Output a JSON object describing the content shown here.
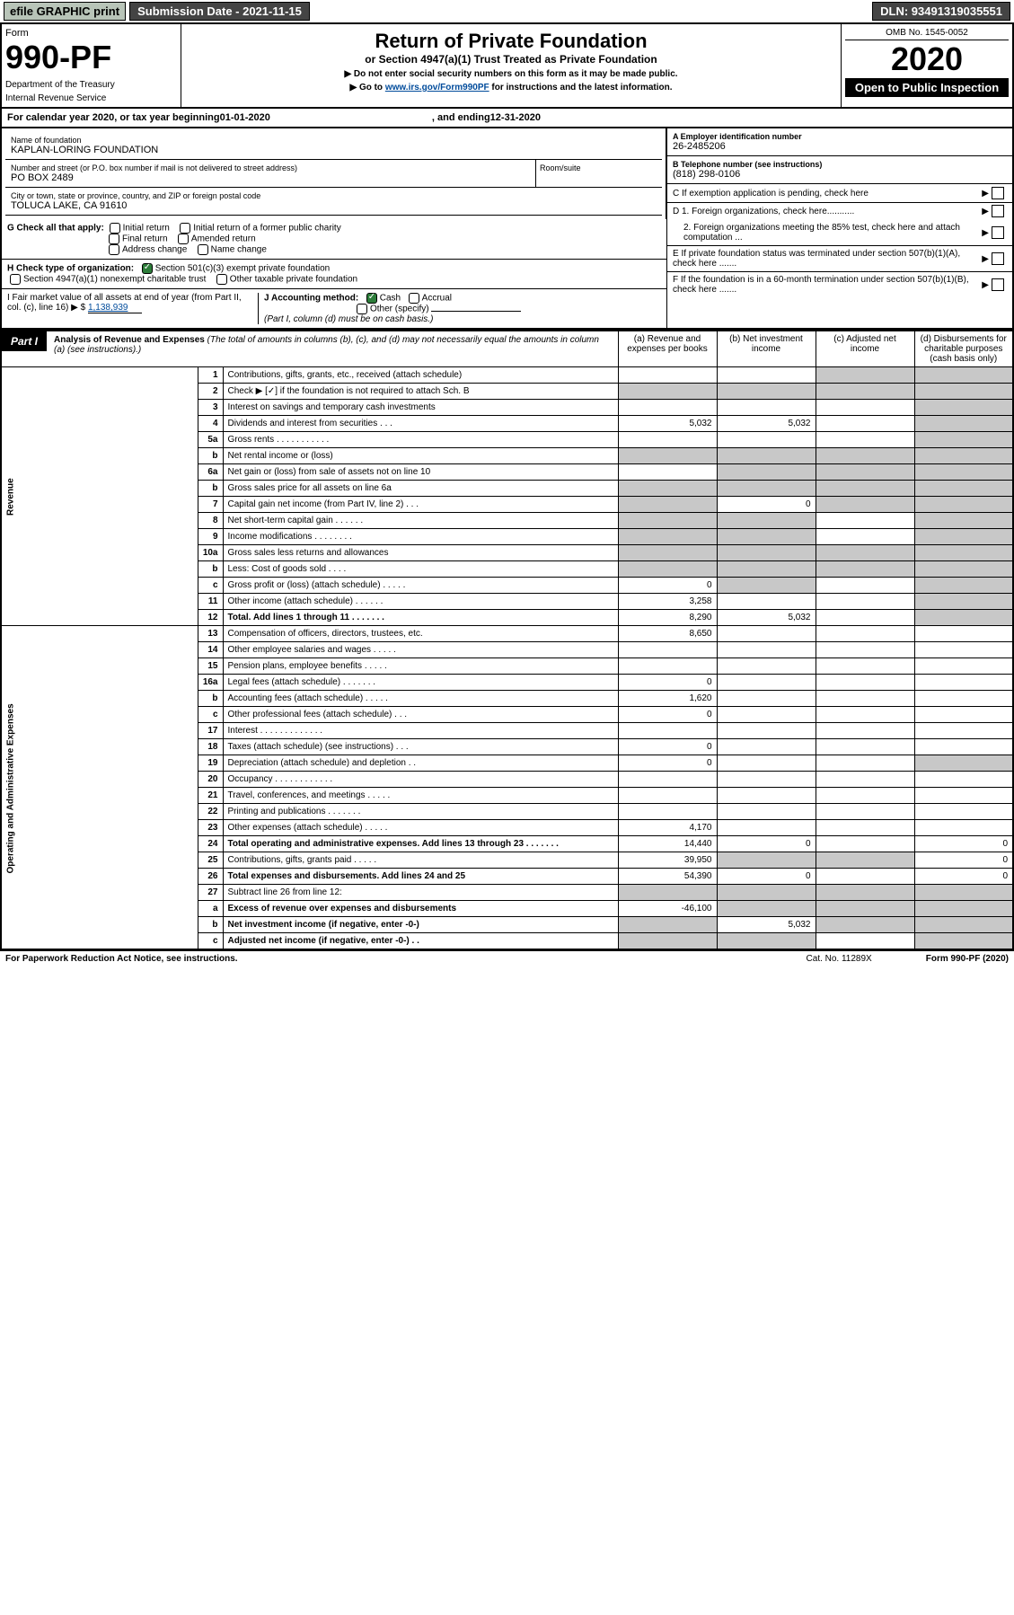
{
  "top": {
    "efile": "efile GRAPHIC print",
    "submission": "Submission Date - 2021-11-15",
    "dln": "DLN: 93491319035551"
  },
  "header": {
    "form_label": "Form",
    "form_no": "990-PF",
    "dept": "Department of the Treasury",
    "irs": "Internal Revenue Service",
    "title": "Return of Private Foundation",
    "subtitle": "or Section 4947(a)(1) Trust Treated as Private Foundation",
    "note1": "▶ Do not enter social security numbers on this form as it may be made public.",
    "note2_pre": "▶ Go to ",
    "note2_link": "www.irs.gov/Form990PF",
    "note2_post": " for instructions and the latest information.",
    "omb": "OMB No. 1545-0052",
    "year": "2020",
    "open": "Open to Public Inspection"
  },
  "calyear": {
    "pre": "For calendar year 2020, or tax year beginning ",
    "begin": "01-01-2020",
    "mid": " , and ending ",
    "end": "12-31-2020"
  },
  "entity": {
    "name_label": "Name of foundation",
    "name": "KAPLAN-LORING FOUNDATION",
    "addr_label": "Number and street (or P.O. box number if mail is not delivered to street address)",
    "addr": "PO BOX 2489",
    "room_label": "Room/suite",
    "city_label": "City or town, state or province, country, and ZIP or foreign postal code",
    "city": "TOLUCA LAKE, CA  91610",
    "ein_label": "A Employer identification number",
    "ein": "26-2485206",
    "phone_label": "B Telephone number (see instructions)",
    "phone": "(818) 298-0106",
    "c_label": "C If exemption application is pending, check here"
  },
  "checks": {
    "g_label": "G Check all that apply:",
    "g_items": [
      "Initial return",
      "Initial return of a former public charity",
      "Final return",
      "Amended return",
      "Address change",
      "Name change"
    ],
    "h_label": "H Check type of organization:",
    "h_items": [
      "Section 501(c)(3) exempt private foundation",
      "Section 4947(a)(1) nonexempt charitable trust",
      "Other taxable private foundation"
    ],
    "i_label": "I Fair market value of all assets at end of year (from Part II, col. (c), line 16) ▶ $",
    "i_val": "1,138,939",
    "j_label": "J Accounting method:",
    "j_items": [
      "Cash",
      "Accrual",
      "Other (specify)"
    ],
    "j_note": "(Part I, column (d) must be on cash basis.)",
    "d1": "D 1. Foreign organizations, check here...........",
    "d2": "2. Foreign organizations meeting the 85% test, check here and attach computation ...",
    "e": "E  If private foundation status was terminated under section 507(b)(1)(A), check here .......",
    "f": "F  If the foundation is in a 60-month termination under section 507(b)(1)(B), check here ......."
  },
  "part1": {
    "label": "Part I",
    "title": "Analysis of Revenue and Expenses",
    "note": "(The total of amounts in columns (b), (c), and (d) may not necessarily equal the amounts in column (a) (see instructions).)",
    "col_a": "(a) Revenue and expenses per books",
    "col_b": "(b) Net investment income",
    "col_c": "(c) Adjusted net income",
    "col_d": "(d) Disbursements for charitable purposes (cash basis only)",
    "side_rev": "Revenue",
    "side_exp": "Operating and Administrative Expenses"
  },
  "rows": [
    {
      "n": "1",
      "d": "Contributions, gifts, grants, etc., received (attach schedule)",
      "a": "",
      "b": "",
      "c": "shaded",
      "dcol": "shaded"
    },
    {
      "n": "2",
      "d": "Check ▶ [✓] if the foundation is not required to attach Sch. B",
      "a": "shaded",
      "b": "shaded",
      "c": "shaded",
      "dcol": "shaded"
    },
    {
      "n": "3",
      "d": "Interest on savings and temporary cash investments",
      "a": "",
      "b": "",
      "c": "",
      "dcol": "shaded"
    },
    {
      "n": "4",
      "d": "Dividends and interest from securities  .  .  .",
      "a": "5,032",
      "b": "5,032",
      "c": "",
      "dcol": "shaded"
    },
    {
      "n": "5a",
      "d": "Gross rents  .  .  .  .  .  .  .  .  .  .  .",
      "a": "",
      "b": "",
      "c": "",
      "dcol": "shaded"
    },
    {
      "n": "b",
      "d": "Net rental income or (loss)  ",
      "a": "shaded",
      "b": "shaded",
      "c": "shaded",
      "dcol": "shaded"
    },
    {
      "n": "6a",
      "d": "Net gain or (loss) from sale of assets not on line 10",
      "a": "",
      "b": "shaded",
      "c": "shaded",
      "dcol": "shaded"
    },
    {
      "n": "b",
      "d": "Gross sales price for all assets on line 6a ",
      "a": "shaded",
      "b": "shaded",
      "c": "shaded",
      "dcol": "shaded"
    },
    {
      "n": "7",
      "d": "Capital gain net income (from Part IV, line 2)  .  .  .",
      "a": "shaded",
      "b": "0",
      "c": "shaded",
      "dcol": "shaded"
    },
    {
      "n": "8",
      "d": "Net short-term capital gain  .  .  .  .  .  .",
      "a": "shaded",
      "b": "shaded",
      "c": "",
      "dcol": "shaded"
    },
    {
      "n": "9",
      "d": "Income modifications  .  .  .  .  .  .  .  .",
      "a": "shaded",
      "b": "shaded",
      "c": "",
      "dcol": "shaded"
    },
    {
      "n": "10a",
      "d": "Gross sales less returns and allowances",
      "a": "shaded",
      "b": "shaded",
      "c": "shaded",
      "dcol": "shaded"
    },
    {
      "n": "b",
      "d": "Less: Cost of goods sold  .  .  .  .",
      "a": "shaded",
      "b": "shaded",
      "c": "shaded",
      "dcol": "shaded"
    },
    {
      "n": "c",
      "d": "Gross profit or (loss) (attach schedule)  .  .  .  .  .",
      "a": "0",
      "b": "shaded",
      "c": "",
      "dcol": "shaded"
    },
    {
      "n": "11",
      "d": "Other income (attach schedule)  .  .  .  .  .  .",
      "a": "3,258",
      "b": "",
      "c": "",
      "dcol": "shaded"
    },
    {
      "n": "12",
      "d": "Total. Add lines 1 through 11  .  .  .  .  .  .  .",
      "a": "8,290",
      "b": "5,032",
      "c": "",
      "dcol": "shaded",
      "bold": true
    },
    {
      "n": "13",
      "d": "Compensation of officers, directors, trustees, etc.",
      "a": "8,650",
      "b": "",
      "c": "",
      "dcol": ""
    },
    {
      "n": "14",
      "d": "Other employee salaries and wages  .  .  .  .  .",
      "a": "",
      "b": "",
      "c": "",
      "dcol": ""
    },
    {
      "n": "15",
      "d": "Pension plans, employee benefits  .  .  .  .  .",
      "a": "",
      "b": "",
      "c": "",
      "dcol": ""
    },
    {
      "n": "16a",
      "d": "Legal fees (attach schedule)  .  .  .  .  .  .  .",
      "a": "0",
      "b": "",
      "c": "",
      "dcol": ""
    },
    {
      "n": "b",
      "d": "Accounting fees (attach schedule)  .  .  .  .  .",
      "a": "1,620",
      "b": "",
      "c": "",
      "dcol": ""
    },
    {
      "n": "c",
      "d": "Other professional fees (attach schedule)  .  .  .",
      "a": "0",
      "b": "",
      "c": "",
      "dcol": ""
    },
    {
      "n": "17",
      "d": "Interest  .  .  .  .  .  .  .  .  .  .  .  .  .",
      "a": "",
      "b": "",
      "c": "",
      "dcol": ""
    },
    {
      "n": "18",
      "d": "Taxes (attach schedule) (see instructions)  .  .  .",
      "a": "0",
      "b": "",
      "c": "",
      "dcol": ""
    },
    {
      "n": "19",
      "d": "Depreciation (attach schedule) and depletion  .  .",
      "a": "0",
      "b": "",
      "c": "",
      "dcol": "shaded"
    },
    {
      "n": "20",
      "d": "Occupancy  .  .  .  .  .  .  .  .  .  .  .  .",
      "a": "",
      "b": "",
      "c": "",
      "dcol": ""
    },
    {
      "n": "21",
      "d": "Travel, conferences, and meetings  .  .  .  .  .",
      "a": "",
      "b": "",
      "c": "",
      "dcol": ""
    },
    {
      "n": "22",
      "d": "Printing and publications  .  .  .  .  .  .  .",
      "a": "",
      "b": "",
      "c": "",
      "dcol": ""
    },
    {
      "n": "23",
      "d": "Other expenses (attach schedule)  .  .  .  .  .",
      "a": "4,170",
      "b": "",
      "c": "",
      "dcol": ""
    },
    {
      "n": "24",
      "d": "Total operating and administrative expenses. Add lines 13 through 23  .  .  .  .  .  .  .",
      "a": "14,440",
      "b": "0",
      "c": "",
      "dcol": "0",
      "bold": true
    },
    {
      "n": "25",
      "d": "Contributions, gifts, grants paid  .  .  .  .  .",
      "a": "39,950",
      "b": "shaded",
      "c": "shaded",
      "dcol": "0"
    },
    {
      "n": "26",
      "d": "Total expenses and disbursements. Add lines 24 and 25",
      "a": "54,390",
      "b": "0",
      "c": "",
      "dcol": "0",
      "bold": true
    },
    {
      "n": "27",
      "d": "Subtract line 26 from line 12:",
      "a": "shaded",
      "b": "shaded",
      "c": "shaded",
      "dcol": "shaded"
    },
    {
      "n": "a",
      "d": "Excess of revenue over expenses and disbursements",
      "a": "-46,100",
      "b": "shaded",
      "c": "shaded",
      "dcol": "shaded",
      "bold": true
    },
    {
      "n": "b",
      "d": "Net investment income (if negative, enter -0-)",
      "a": "shaded",
      "b": "5,032",
      "c": "shaded",
      "dcol": "shaded",
      "bold": true
    },
    {
      "n": "c",
      "d": "Adjusted net income (if negative, enter -0-)  .  .",
      "a": "shaded",
      "b": "shaded",
      "c": "",
      "dcol": "shaded",
      "bold": true
    }
  ],
  "footer": {
    "left": "For Paperwork Reduction Act Notice, see instructions.",
    "cat": "Cat. No. 11289X",
    "form": "Form 990-PF (2020)"
  },
  "colors": {
    "shaded": "#c8c8c8",
    "link": "#004b9b",
    "check_green": "#2d7d3a"
  }
}
